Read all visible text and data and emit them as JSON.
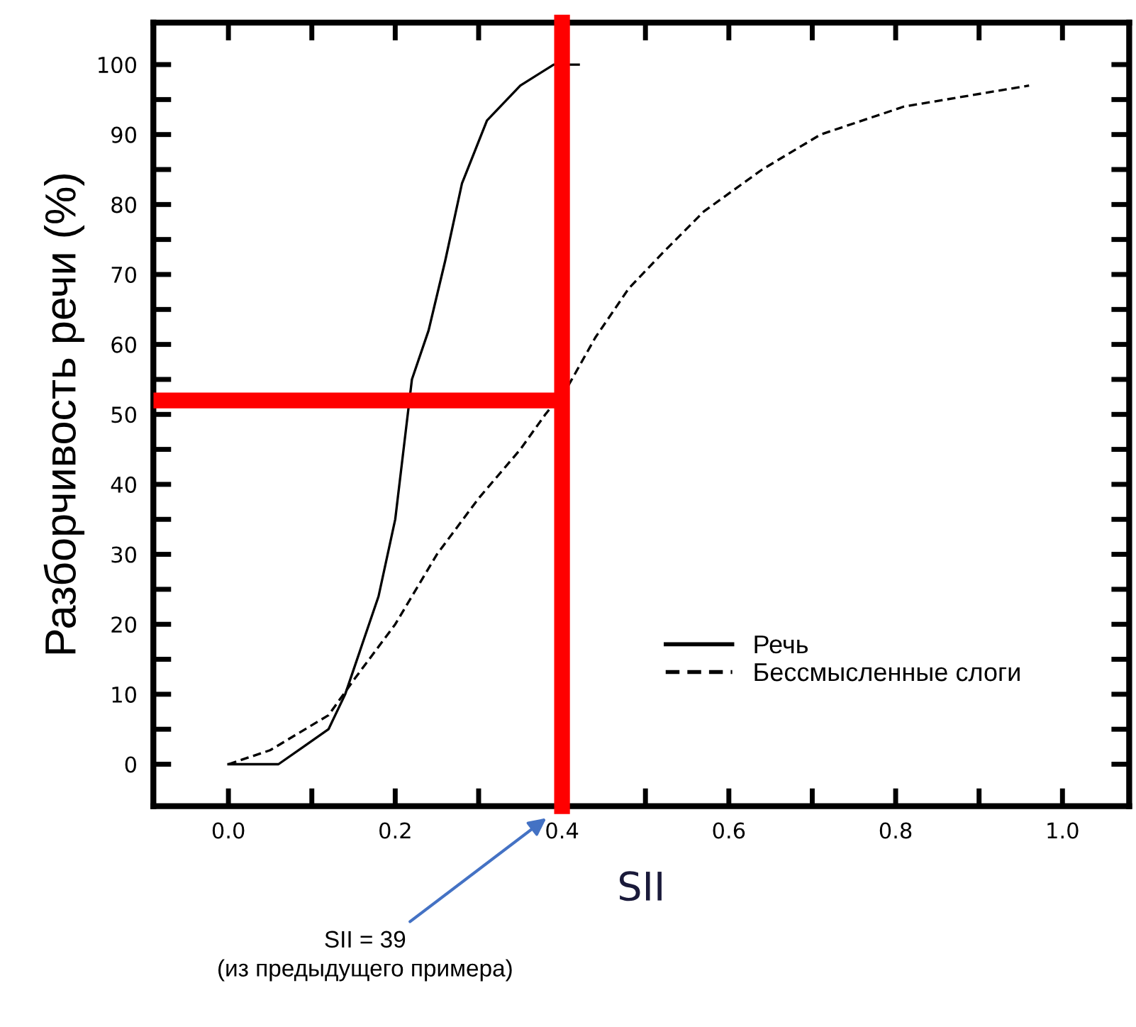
{
  "chart_data": {
    "type": "line",
    "xlabel": "SII",
    "ylabel": "Разборчивость речи (%)",
    "xlim": [
      -0.09,
      1.08
    ],
    "ylim": [
      -6,
      106
    ],
    "xticks": [
      {
        "value": 0.0,
        "label": "0.0"
      },
      {
        "value": 0.1,
        "label": null
      },
      {
        "value": 0.2,
        "label": "0.2"
      },
      {
        "value": 0.3,
        "label": null
      },
      {
        "value": 0.4,
        "label": "0.4"
      },
      {
        "value": 0.5,
        "label": null
      },
      {
        "value": 0.6,
        "label": "0.6"
      },
      {
        "value": 0.7,
        "label": null
      },
      {
        "value": 0.8,
        "label": "0.8"
      },
      {
        "value": 0.9,
        "label": null
      },
      {
        "value": 1.0,
        "label": "1.0"
      }
    ],
    "yticks": [
      0,
      {
        "value": 5,
        "label": null
      },
      10,
      {
        "value": 15,
        "label": null
      },
      20,
      {
        "value": 25,
        "label": null
      },
      30,
      {
        "value": 35,
        "label": null
      },
      40,
      {
        "value": 45,
        "label": null
      },
      50,
      {
        "value": 55,
        "label": null
      },
      60,
      {
        "value": 65,
        "label": null
      },
      70,
      {
        "value": 75,
        "label": null
      },
      80,
      {
        "value": 85,
        "label": null
      },
      90,
      {
        "value": 95,
        "label": null
      },
      100
    ],
    "grid": false,
    "legend": "bottom right",
    "marker": "none",
    "series": [
      {
        "name": "Речь",
        "color": "#000000",
        "line_style": "solid",
        "x": [
          0.0,
          0.06,
          0.09,
          0.12,
          0.14,
          0.16,
          0.18,
          0.2,
          0.21,
          0.22,
          0.24,
          0.26,
          0.28,
          0.31,
          0.35,
          0.39,
          0.42
        ],
        "values": [
          0,
          0,
          2.5,
          5,
          10,
          17,
          24,
          35,
          45,
          55,
          62,
          72,
          83,
          92,
          97,
          100,
          100
        ]
      },
      {
        "name": "Бессмысленные слоги",
        "color": "#000000",
        "line_style": "dashed",
        "x": [
          0.0,
          0.05,
          0.12,
          0.15,
          0.2,
          0.25,
          0.3,
          0.35,
          0.38,
          0.407,
          0.44,
          0.48,
          0.52,
          0.57,
          0.64,
          0.71,
          0.81,
          0.96
        ],
        "values": [
          0,
          2,
          7,
          12,
          20,
          30,
          38,
          45,
          50,
          54,
          61,
          68,
          73,
          79,
          85,
          90,
          94,
          97
        ]
      }
    ],
    "ref_lines": [
      {
        "axis": "x",
        "value": 0.4,
        "color": "#ff0000"
      },
      {
        "axis": "y",
        "value": 52,
        "color": "#ff0000"
      }
    ],
    "annotations": [
      "SII = 39\n(из предыдущего примера)"
    ]
  }
}
